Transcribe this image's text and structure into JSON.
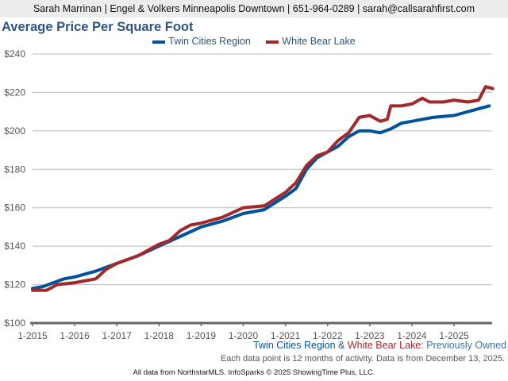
{
  "header": {
    "text": "Sarah Marrinan | Engel & Volkers Minneapolis Downtown | 651-964-0289 | sarah@callsarahfirst.com"
  },
  "chart_data": {
    "type": "line",
    "title": "Average Price Per Square Foot",
    "xlabel": "",
    "ylabel": "",
    "ylim": [
      100,
      240
    ],
    "yticks": [
      "$100",
      "$120",
      "$140",
      "$160",
      "$180",
      "$200",
      "$220",
      "$240"
    ],
    "ytick_values": [
      100,
      120,
      140,
      160,
      180,
      200,
      220,
      240
    ],
    "xticks": [
      "1-2015",
      "1-2016",
      "1-2017",
      "1-2018",
      "1-2019",
      "1-2020",
      "1-2021",
      "1-2022",
      "1-2023",
      "1-2024",
      "1-2025"
    ],
    "grid": true,
    "legend": "top-center",
    "series": [
      {
        "name": "Twin Cities Region",
        "color": "#00539b",
        "points": [
          [
            "2015-01",
            118
          ],
          [
            "2015-04",
            119
          ],
          [
            "2015-07",
            121
          ],
          [
            "2015-10",
            123
          ],
          [
            "2016-01",
            124
          ],
          [
            "2016-07",
            127
          ],
          [
            "2017-01",
            131
          ],
          [
            "2017-07",
            135
          ],
          [
            "2018-01",
            140
          ],
          [
            "2018-07",
            145
          ],
          [
            "2019-01",
            150
          ],
          [
            "2019-07",
            153
          ],
          [
            "2020-01",
            157
          ],
          [
            "2020-07",
            159
          ],
          [
            "2021-01",
            166
          ],
          [
            "2021-04",
            170
          ],
          [
            "2021-07",
            180
          ],
          [
            "2021-10",
            186
          ],
          [
            "2022-01",
            189
          ],
          [
            "2022-04",
            192
          ],
          [
            "2022-07",
            197
          ],
          [
            "2022-10",
            200
          ],
          [
            "2023-01",
            200
          ],
          [
            "2023-04",
            199
          ],
          [
            "2023-07",
            201
          ],
          [
            "2023-10",
            204
          ],
          [
            "2024-01",
            205
          ],
          [
            "2024-07",
            207
          ],
          [
            "2025-01",
            208
          ],
          [
            "2025-07",
            211
          ],
          [
            "2025-11",
            213
          ]
        ]
      },
      {
        "name": "White Bear Lake",
        "color": "#a3282b",
        "points": [
          [
            "2015-01",
            117
          ],
          [
            "2015-05",
            117
          ],
          [
            "2015-08",
            120
          ],
          [
            "2016-01",
            121
          ],
          [
            "2016-07",
            123
          ],
          [
            "2016-10",
            128
          ],
          [
            "2017-01",
            131
          ],
          [
            "2017-07",
            135
          ],
          [
            "2018-01",
            141
          ],
          [
            "2018-04",
            143
          ],
          [
            "2018-07",
            148
          ],
          [
            "2018-10",
            151
          ],
          [
            "2019-01",
            152
          ],
          [
            "2019-07",
            155
          ],
          [
            "2020-01",
            160
          ],
          [
            "2020-07",
            161
          ],
          [
            "2021-01",
            168
          ],
          [
            "2021-04",
            173
          ],
          [
            "2021-07",
            182
          ],
          [
            "2021-10",
            187
          ],
          [
            "2022-01",
            189
          ],
          [
            "2022-04",
            195
          ],
          [
            "2022-07",
            199
          ],
          [
            "2022-10",
            207
          ],
          [
            "2023-01",
            208
          ],
          [
            "2023-04",
            205
          ],
          [
            "2023-06",
            206
          ],
          [
            "2023-07",
            213
          ],
          [
            "2023-10",
            213
          ],
          [
            "2024-01",
            214
          ],
          [
            "2024-04",
            217
          ],
          [
            "2024-06",
            215
          ],
          [
            "2024-10",
            215
          ],
          [
            "2025-01",
            216
          ],
          [
            "2025-05",
            215
          ],
          [
            "2025-08",
            216
          ],
          [
            "2025-10",
            223
          ],
          [
            "2025-12",
            222
          ]
        ]
      }
    ]
  },
  "footer": {
    "region1": "Twin Cities Region",
    "amp": " & ",
    "region2": "White Bear Lake",
    "colon": ": ",
    "type": "Previously Owned",
    "note": "Each data point is 12 months of activity. Data is from December 13, 2025.",
    "source": "All data from NorthstarMLS. InfoSparks © 2025 ShowingTime Plus, LLC."
  }
}
